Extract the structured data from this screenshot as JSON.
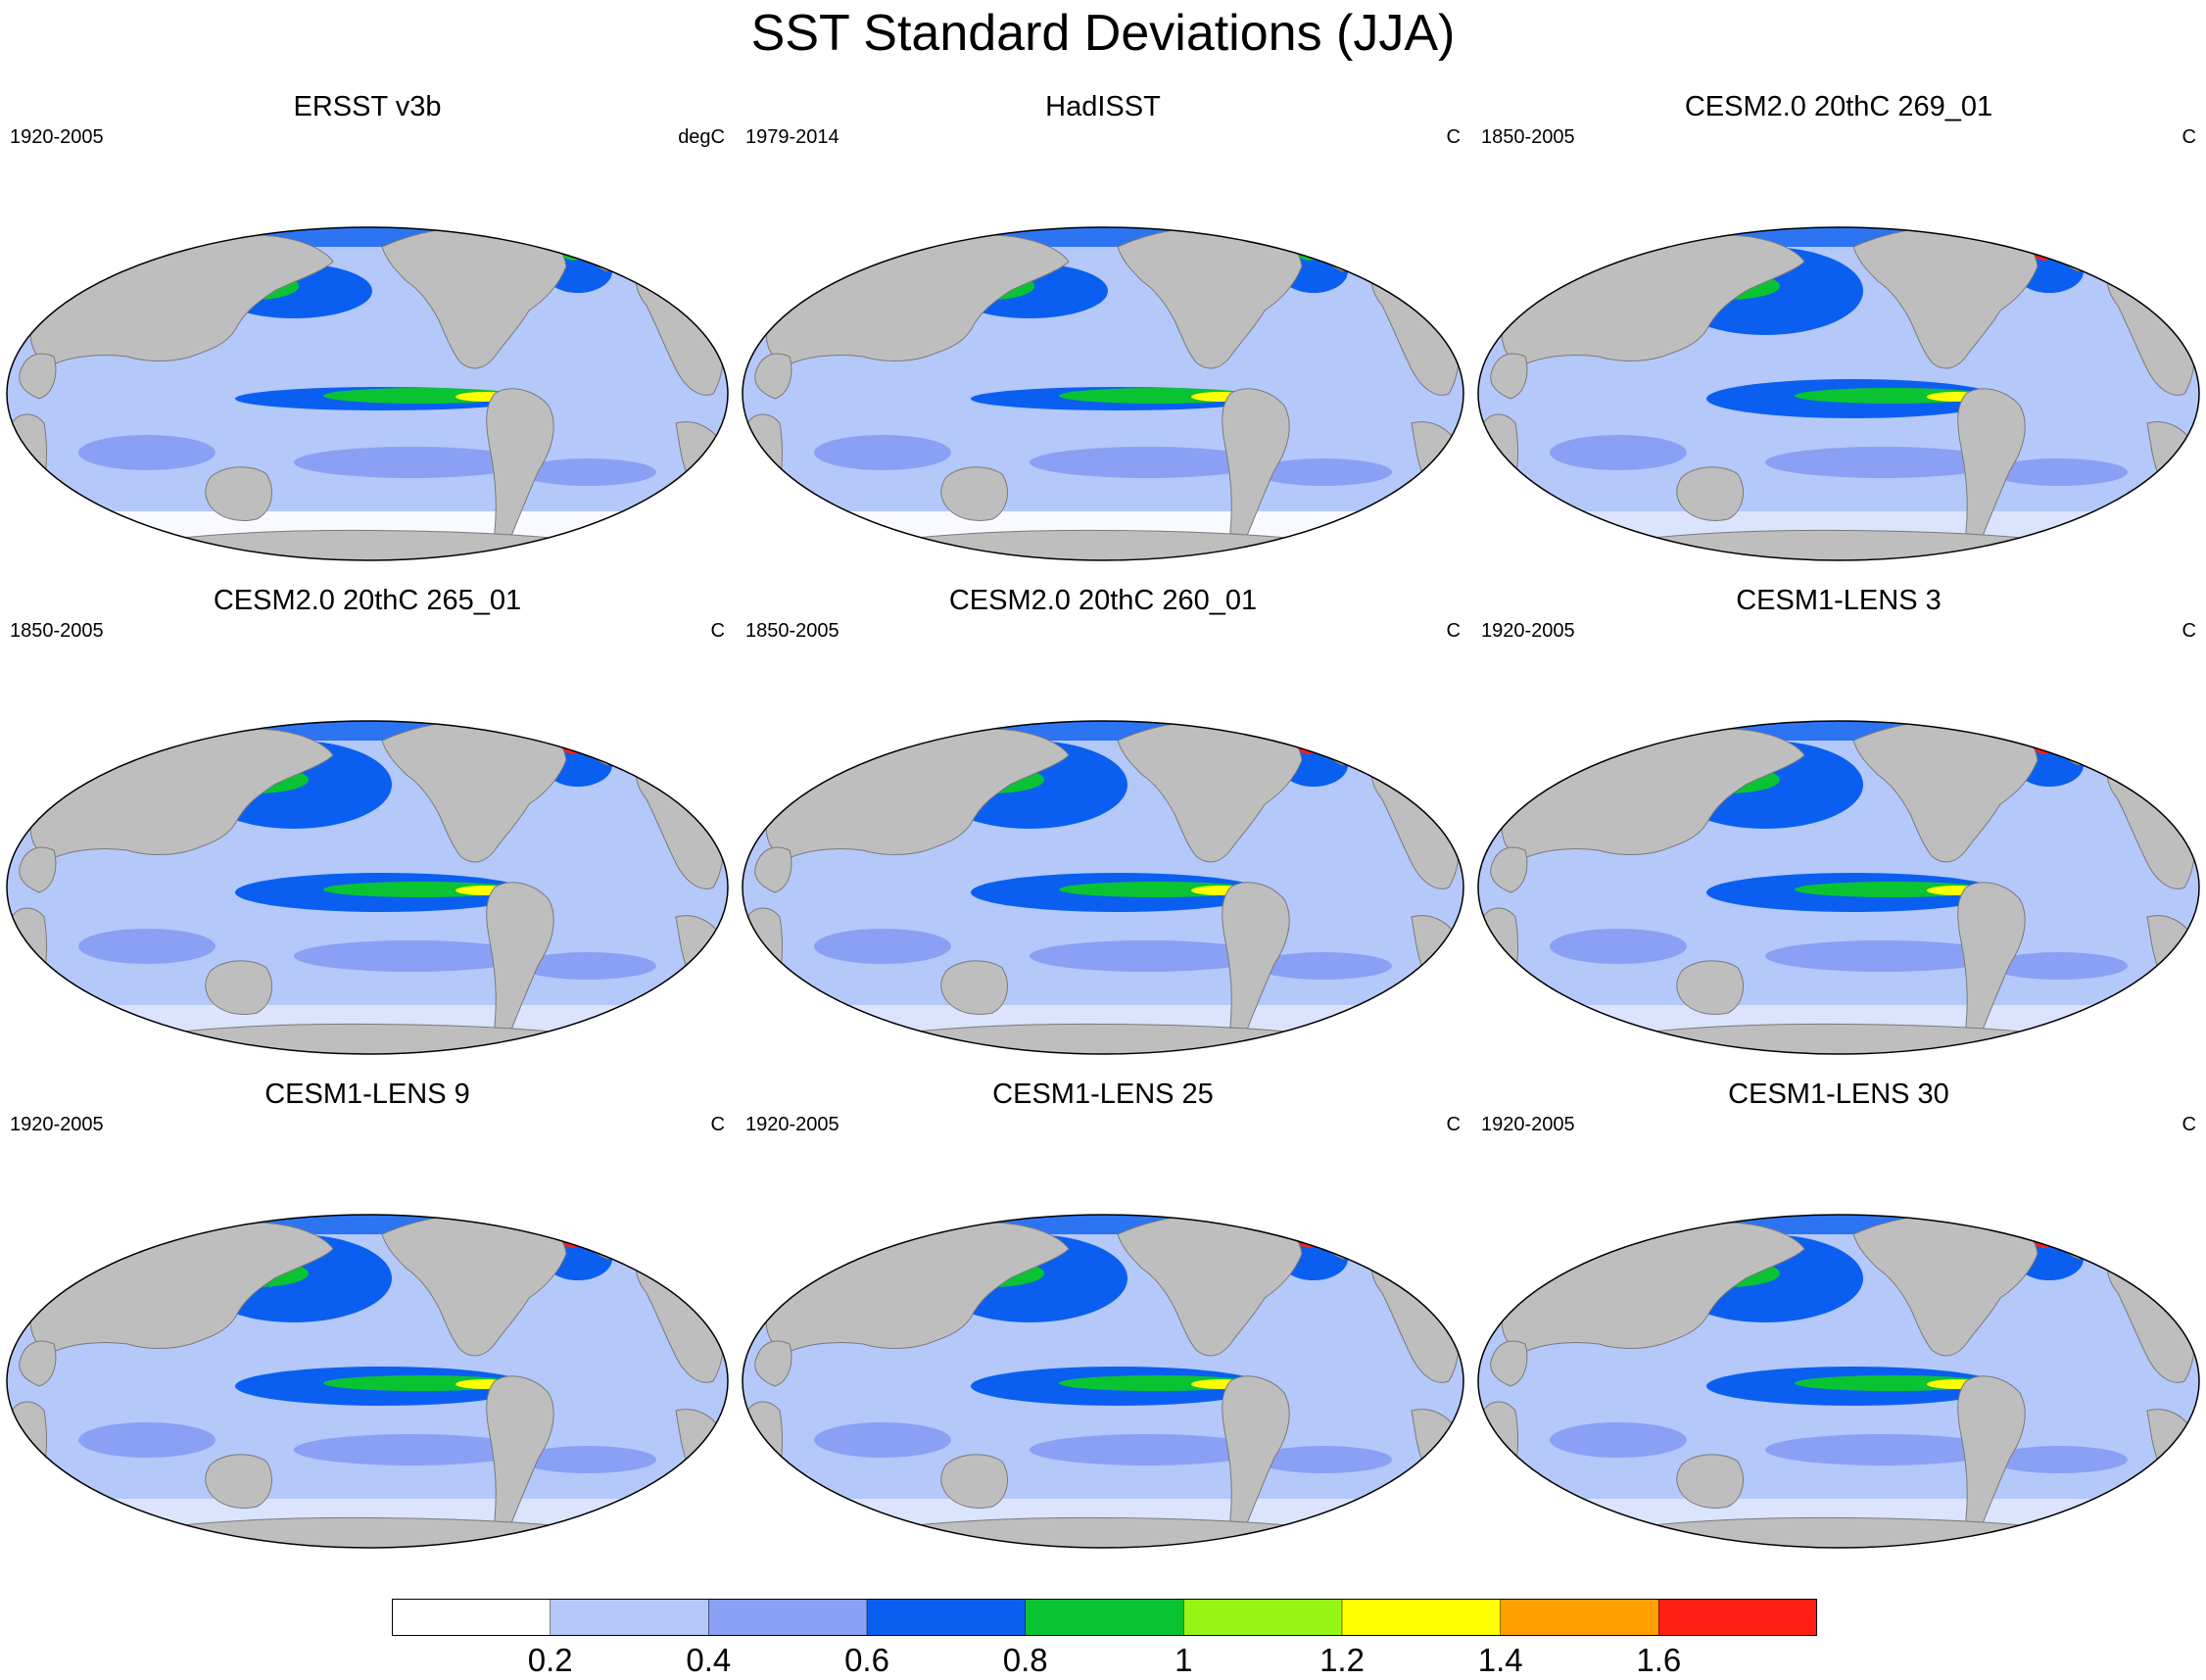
{
  "title": "SST Standard Deviations (JJA)",
  "panels": [
    {
      "title": "ERSST v3b",
      "period": "1920-2005",
      "units": "degC"
    },
    {
      "title": "HadISST",
      "period": "1979-2014",
      "units": "C"
    },
    {
      "title": "CESM2.0 20thC 269_01",
      "period": "1850-2005",
      "units": "C"
    },
    {
      "title": "CESM2.0 20thC 265_01",
      "period": "1850-2005",
      "units": "C"
    },
    {
      "title": "CESM2.0 20thC 260_01",
      "period": "1850-2005",
      "units": "C"
    },
    {
      "title": "CESM1-LENS 3",
      "period": "1920-2005",
      "units": "C"
    },
    {
      "title": "CESM1-LENS 9",
      "period": "1920-2005",
      "units": "C"
    },
    {
      "title": "CESM1-LENS 25",
      "period": "1920-2005",
      "units": "C"
    },
    {
      "title": "CESM1-LENS 30",
      "period": "1920-2005",
      "units": "C"
    }
  ],
  "colorbar": {
    "labels": [
      "0.2",
      "0.4",
      "0.6",
      "0.8",
      "1",
      "1.2",
      "1.4",
      "1.6"
    ],
    "colors": [
      "#ffffff",
      "#b4c8fa",
      "#8aa0f5",
      "#0a5ff0",
      "#0ac332",
      "#96f514",
      "#ffff00",
      "#ffa000",
      "#ff1e14"
    ]
  },
  "colors": {
    "land": "#bebebe",
    "ocean_base": "#b4c8fa"
  }
}
